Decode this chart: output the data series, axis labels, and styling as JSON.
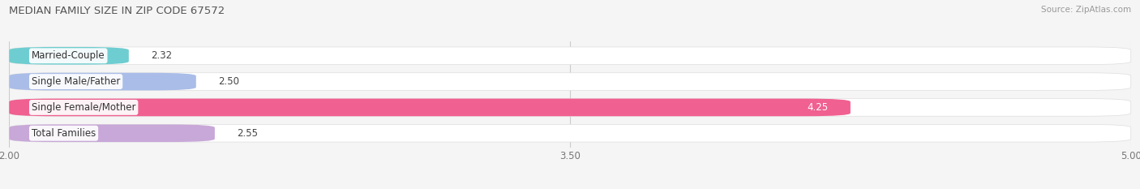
{
  "title": "MEDIAN FAMILY SIZE IN ZIP CODE 67572",
  "source": "Source: ZipAtlas.com",
  "categories": [
    "Married-Couple",
    "Single Male/Father",
    "Single Female/Mother",
    "Total Families"
  ],
  "values": [
    2.32,
    2.5,
    4.25,
    2.55
  ],
  "bar_colors": [
    "#6ecdd0",
    "#aabde8",
    "#f06090",
    "#c8a8d8"
  ],
  "label_colors": [
    "#444444",
    "#444444",
    "#ffffff",
    "#444444"
  ],
  "xlim": [
    2.0,
    5.0
  ],
  "xticks": [
    2.0,
    3.5,
    5.0
  ],
  "xstart": 2.0,
  "bar_height": 0.68,
  "background_color": "#f5f5f5",
  "bar_bg_color": "#e4e4e4",
  "row_bg_color": "#ffffff",
  "title_fontsize": 9.5,
  "label_fontsize": 8.5,
  "value_fontsize": 8.5,
  "source_fontsize": 7.5,
  "grid_color": "#cccccc"
}
